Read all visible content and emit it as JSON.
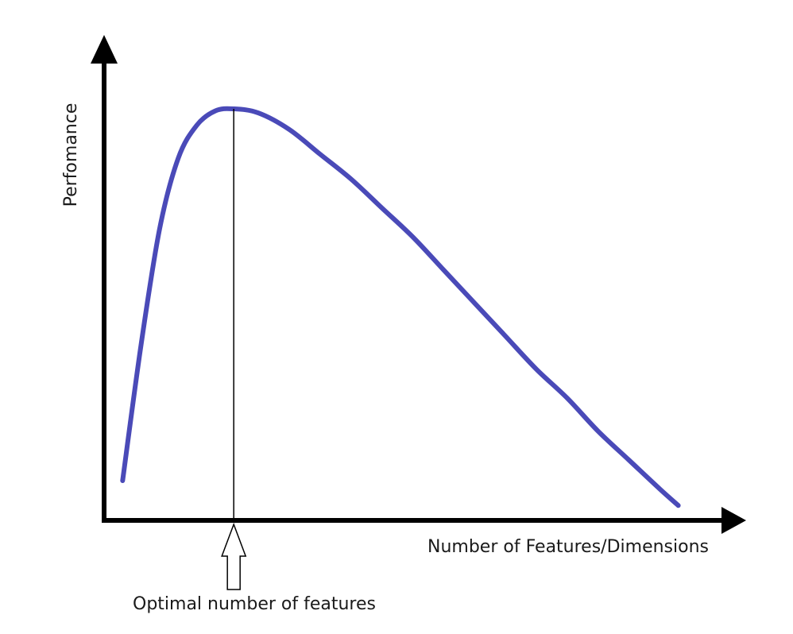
{
  "chart_data": {
    "type": "line",
    "title": "",
    "xlabel": "Number of Features/Dimensions",
    "ylabel": "Perfomance",
    "xlim": [
      0,
      1
    ],
    "ylim": [
      0,
      1
    ],
    "grid": false,
    "legend": "none",
    "series": [
      {
        "name": "performance",
        "color": "#4a4ab8",
        "x": [
          0.03,
          0.06,
          0.09,
          0.12,
          0.15,
          0.18,
          0.21,
          0.25,
          0.3,
          0.35,
          0.4,
          0.45,
          0.5,
          0.55,
          0.6,
          0.65,
          0.7,
          0.75,
          0.8,
          0.85,
          0.9,
          0.93
        ],
        "y": [
          0.1,
          0.43,
          0.71,
          0.88,
          0.96,
          0.995,
          1.0,
          0.99,
          0.95,
          0.89,
          0.83,
          0.76,
          0.69,
          0.61,
          0.53,
          0.45,
          0.37,
          0.3,
          0.22,
          0.15,
          0.08,
          0.04
        ]
      }
    ],
    "annotations": [
      {
        "name": "optimum-line",
        "x": 0.21,
        "label": "Optimal number of features"
      }
    ],
    "colors": {
      "curve": "#4a4ab8",
      "axes": "#000000",
      "annotation_line": "#000000"
    }
  }
}
